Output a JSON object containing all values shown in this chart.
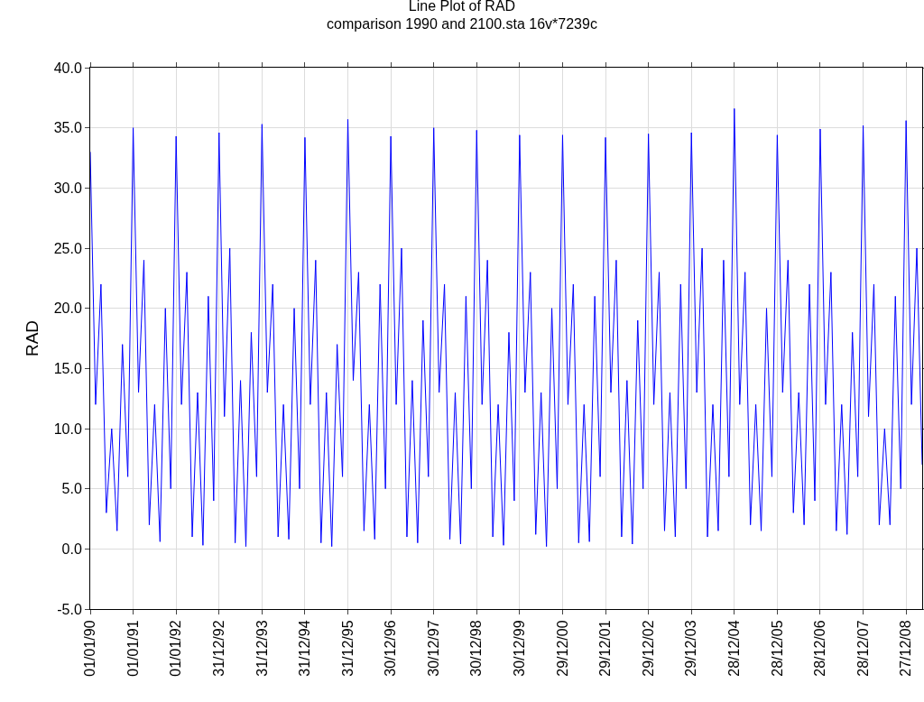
{
  "chart_data": {
    "type": "line",
    "title": "Line Plot of RAD",
    "subtitle": "comparison 1990 and 2100.sta 16v*7239c",
    "ylabel": "RAD",
    "categories": [
      "01/01/90",
      null,
      null,
      null,
      null,
      null,
      null,
      null,
      "01/01/91",
      null,
      null,
      null,
      null,
      null,
      null,
      null,
      "01/01/92",
      null,
      null,
      null,
      null,
      null,
      null,
      null,
      "31/12/92",
      null,
      null,
      null,
      null,
      null,
      null,
      null,
      "31/12/93",
      null,
      null,
      null,
      null,
      null,
      null,
      null,
      "31/12/94",
      null,
      null,
      null,
      null,
      null,
      null,
      null,
      "31/12/95",
      null,
      null,
      null,
      null,
      null,
      null,
      null,
      "30/12/96",
      null,
      null,
      null,
      null,
      null,
      null,
      null,
      "30/12/97",
      null,
      null,
      null,
      null,
      null,
      null,
      null,
      "30/12/98",
      null,
      null,
      null,
      null,
      null,
      null,
      null,
      "30/12/99",
      null,
      null,
      null,
      null,
      null,
      null,
      null,
      "29/12/00",
      null,
      null,
      null,
      null,
      null,
      null,
      null,
      "29/12/01",
      null,
      null,
      null,
      null,
      null,
      null,
      null,
      "29/12/02",
      null,
      null,
      null,
      null,
      null,
      null,
      null,
      "29/12/03",
      null,
      null,
      null,
      null,
      null,
      null,
      null,
      "28/12/04",
      null,
      null,
      null,
      null,
      null,
      null,
      null,
      "28/12/05",
      null,
      null,
      null,
      null,
      null,
      null,
      null,
      "28/12/06",
      null,
      null,
      null,
      null,
      null,
      null,
      null,
      "28/12/07",
      null,
      null,
      null,
      null,
      null,
      null,
      null,
      "27/12/08",
      null,
      null,
      null
    ],
    "series": [
      {
        "color": "#0000ff",
        "values": [
          33,
          12,
          22,
          3,
          10,
          1.5,
          17,
          6,
          35,
          13,
          24,
          2,
          12,
          0.6,
          20,
          5,
          34.3,
          12,
          23,
          1,
          13,
          0.3,
          21,
          4,
          34.6,
          11,
          25,
          0.5,
          14,
          0.2,
          18,
          6,
          35.3,
          13,
          22,
          1,
          12,
          0.8,
          20,
          5,
          34.2,
          12,
          24,
          0.5,
          13,
          0.2,
          17,
          6,
          35.7,
          14,
          23,
          1.5,
          12,
          0.8,
          22,
          5,
          34.3,
          12,
          25,
          1,
          14,
          0.5,
          19,
          6,
          35,
          13,
          22,
          0.8,
          13,
          0.4,
          21,
          5,
          34.8,
          12,
          24,
          1,
          12,
          0.3,
          18,
          4,
          34.4,
          13,
          23,
          1.2,
          13,
          0.2,
          20,
          5,
          34.4,
          12,
          22,
          0.5,
          12,
          0.6,
          21,
          6,
          34.2,
          13,
          24,
          1,
          14,
          0.4,
          19,
          5,
          34.5,
          12,
          23,
          1.5,
          13,
          1,
          22,
          5,
          34.6,
          13,
          25,
          1,
          12,
          1.5,
          24,
          6,
          36.6,
          12,
          23,
          2,
          12,
          1.5,
          20,
          6,
          34.4,
          13,
          24,
          3,
          13,
          2,
          22,
          4,
          34.9,
          12,
          23,
          1.5,
          12,
          1.2,
          18,
          6,
          35.2,
          11,
          22,
          2,
          10,
          2,
          21,
          5,
          35.6,
          12,
          25,
          7
        ]
      }
    ],
    "ylim": [
      -5,
      40
    ],
    "yticks": [
      {
        "value": -5,
        "label": "-5.0"
      },
      {
        "value": 0,
        "label": "0.0"
      },
      {
        "value": 5,
        "label": "5.0"
      },
      {
        "value": 10,
        "label": "10.0"
      },
      {
        "value": 15,
        "label": "15.0"
      },
      {
        "value": 20,
        "label": "20.0"
      },
      {
        "value": 25,
        "label": "25.0"
      },
      {
        "value": 30,
        "label": "30.0"
      },
      {
        "value": 35,
        "label": "35.0"
      },
      {
        "value": 40,
        "label": "40.0"
      }
    ],
    "grid": true,
    "marker": "none",
    "line_style": "solid"
  }
}
